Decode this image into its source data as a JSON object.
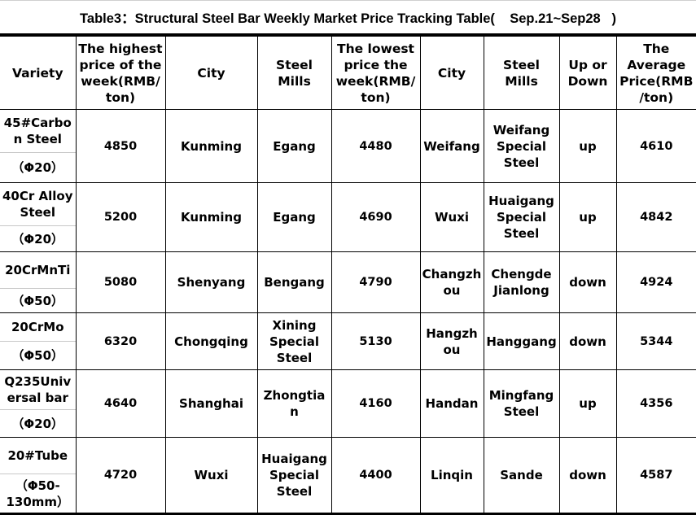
{
  "title": "Table3：Structural Steel Bar Weekly Market Price Tracking Table(    Sep.21~Sep28   )",
  "headers": [
    "Variety",
    "The highest price of the week(RMB/ ton)",
    "City",
    "Steel Mills",
    "The lowest price the week(RMB/ ton)",
    "City",
    "Steel Mills",
    "Up or Down",
    "The Average Price(RMB /ton)"
  ],
  "rows": [
    {
      "variety": "45#Carbon Steel",
      "size": "（Φ20）",
      "high": "4850",
      "high_city": "Kunming",
      "high_mill": "Egang",
      "low": "4480",
      "low_city": "Weifang",
      "low_mill": "Weifang Special Steel",
      "trend": "up",
      "avg": "4610"
    },
    {
      "variety": "40Cr Alloy Steel",
      "size": "（Φ20）",
      "high": "5200",
      "high_city": "Kunming",
      "high_mill": "Egang",
      "low": "4690",
      "low_city": "Wuxi",
      "low_mill": "Huaigang Special Steel",
      "trend": "up",
      "avg": "4842"
    },
    {
      "variety": "20CrMnTi",
      "size": "（Φ50）",
      "high": "5080",
      "high_city": "Shenyang",
      "high_mill": "Bengang",
      "low": "4790",
      "low_city": "Changzhou",
      "low_mill": "Chengde Jianlong",
      "trend": "down",
      "avg": "4924"
    },
    {
      "variety": "20CrMo",
      "size": "（Φ50）",
      "high": "6320",
      "high_city": "Chongqing",
      "high_mill": "Xining Special Steel",
      "low": "5130",
      "low_city": "Hangzhou",
      "low_mill": "Hanggang",
      "trend": "down",
      "avg": "5344"
    },
    {
      "variety": "Q235Universal bar",
      "size": "（Φ20）",
      "high": "4640",
      "high_city": "Shanghai",
      "high_mill": "Zhongtian",
      "low": "4160",
      "low_city": "Handan",
      "low_mill": "Mingfang Steel",
      "trend": "up",
      "avg": "4356"
    },
    {
      "variety": "20#Tube",
      "size": "（Φ50-130mm）",
      "high": "4720",
      "high_city": "Wuxi",
      "high_mill": "Huaigang Special Steel",
      "low": "4400",
      "low_city": "Linqin",
      "low_mill": "Sande",
      "trend": "down",
      "avg": "4587"
    }
  ]
}
